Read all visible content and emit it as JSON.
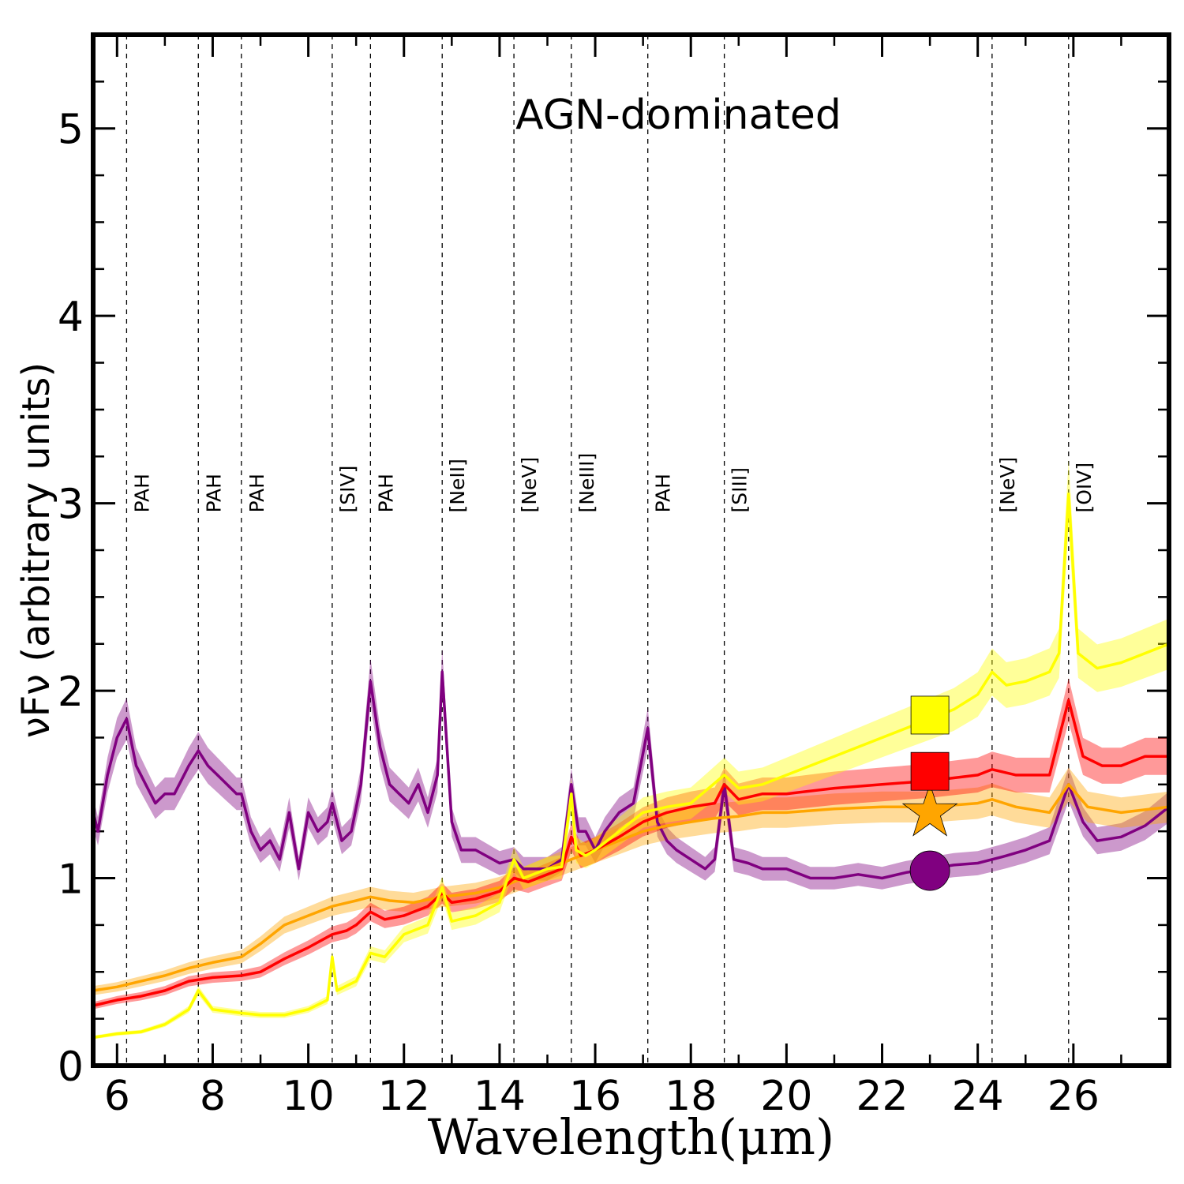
{
  "chart_data": {
    "type": "line",
    "title": "AGN-dominated",
    "xlabel": "Wavelength(μm)",
    "ylabel": "νFν (arbitrary units)",
    "xlim": [
      5.5,
      28.0
    ],
    "ylim": [
      0,
      5.5
    ],
    "x_ticks": [
      6,
      8,
      10,
      12,
      14,
      16,
      18,
      20,
      22,
      24,
      26
    ],
    "y_ticks": [
      0,
      1,
      2,
      3,
      4,
      5
    ],
    "grid": false,
    "spectral_lines": [
      {
        "x": 6.2,
        "label": "PAH"
      },
      {
        "x": 7.7,
        "label": "PAH"
      },
      {
        "x": 8.6,
        "label": "PAH"
      },
      {
        "x": 10.5,
        "label": "[SIV]"
      },
      {
        "x": 11.3,
        "label": "PAH"
      },
      {
        "x": 12.8,
        "label": "[NeII]"
      },
      {
        "x": 14.3,
        "label": "[NeV]"
      },
      {
        "x": 15.5,
        "label": "[NeIII]"
      },
      {
        "x": 17.1,
        "label": "PAH"
      },
      {
        "x": 18.7,
        "label": "[SIII]"
      },
      {
        "x": 24.3,
        "label": "[NeV]"
      },
      {
        "x": 25.9,
        "label": "[OIV]"
      }
    ],
    "series": [
      {
        "color": "#800080",
        "marker": "circle",
        "marker_point": [
          23.0,
          1.04
        ],
        "points": [
          [
            5.5,
            1.35
          ],
          [
            5.6,
            1.25
          ],
          [
            5.8,
            1.55
          ],
          [
            6.0,
            1.75
          ],
          [
            6.2,
            1.85
          ],
          [
            6.4,
            1.6
          ],
          [
            6.6,
            1.5
          ],
          [
            6.8,
            1.4
          ],
          [
            7.0,
            1.45
          ],
          [
            7.2,
            1.45
          ],
          [
            7.5,
            1.6
          ],
          [
            7.7,
            1.68
          ],
          [
            7.9,
            1.6
          ],
          [
            8.1,
            1.55
          ],
          [
            8.3,
            1.5
          ],
          [
            8.5,
            1.45
          ],
          [
            8.6,
            1.45
          ],
          [
            8.8,
            1.25
          ],
          [
            9.0,
            1.15
          ],
          [
            9.2,
            1.2
          ],
          [
            9.4,
            1.1
          ],
          [
            9.6,
            1.35
          ],
          [
            9.8,
            1.05
          ],
          [
            10.0,
            1.35
          ],
          [
            10.2,
            1.25
          ],
          [
            10.4,
            1.3
          ],
          [
            10.5,
            1.4
          ],
          [
            10.7,
            1.2
          ],
          [
            10.9,
            1.25
          ],
          [
            11.1,
            1.5
          ],
          [
            11.3,
            2.05
          ],
          [
            11.5,
            1.7
          ],
          [
            11.7,
            1.5
          ],
          [
            11.9,
            1.45
          ],
          [
            12.1,
            1.4
          ],
          [
            12.3,
            1.5
          ],
          [
            12.5,
            1.35
          ],
          [
            12.7,
            1.55
          ],
          [
            12.8,
            2.1
          ],
          [
            13.0,
            1.3
          ],
          [
            13.2,
            1.15
          ],
          [
            13.5,
            1.15
          ],
          [
            14.0,
            1.08
          ],
          [
            14.3,
            1.1
          ],
          [
            14.5,
            1.05
          ],
          [
            15.0,
            1.05
          ],
          [
            15.3,
            1.1
          ],
          [
            15.5,
            1.5
          ],
          [
            15.65,
            1.25
          ],
          [
            15.8,
            1.25
          ],
          [
            16.0,
            1.15
          ],
          [
            16.2,
            1.25
          ],
          [
            16.5,
            1.35
          ],
          [
            16.8,
            1.4
          ],
          [
            17.1,
            1.8
          ],
          [
            17.3,
            1.3
          ],
          [
            17.5,
            1.2
          ],
          [
            17.7,
            1.15
          ],
          [
            18.0,
            1.1
          ],
          [
            18.3,
            1.05
          ],
          [
            18.5,
            1.1
          ],
          [
            18.7,
            1.5
          ],
          [
            18.9,
            1.1
          ],
          [
            19.2,
            1.08
          ],
          [
            19.5,
            1.05
          ],
          [
            20.0,
            1.05
          ],
          [
            20.5,
            1.0
          ],
          [
            21.0,
            1.0
          ],
          [
            21.5,
            1.02
          ],
          [
            22.0,
            1.0
          ],
          [
            22.5,
            1.03
          ],
          [
            23.0,
            1.05
          ],
          [
            23.5,
            1.07
          ],
          [
            24.0,
            1.08
          ],
          [
            24.3,
            1.1
          ],
          [
            24.6,
            1.12
          ],
          [
            25.0,
            1.15
          ],
          [
            25.5,
            1.2
          ],
          [
            25.9,
            1.5
          ],
          [
            26.2,
            1.3
          ],
          [
            26.5,
            1.2
          ],
          [
            27.0,
            1.22
          ],
          [
            27.5,
            1.28
          ],
          [
            28.0,
            1.38
          ]
        ]
      },
      {
        "color": "#ffa500",
        "marker": "star",
        "marker_point": [
          23.0,
          1.35
        ],
        "points": [
          [
            5.5,
            0.4
          ],
          [
            6.0,
            0.42
          ],
          [
            6.5,
            0.45
          ],
          [
            7.0,
            0.48
          ],
          [
            7.5,
            0.52
          ],
          [
            8.0,
            0.55
          ],
          [
            8.6,
            0.58
          ],
          [
            9.0,
            0.65
          ],
          [
            9.5,
            0.75
          ],
          [
            10.0,
            0.8
          ],
          [
            10.5,
            0.85
          ],
          [
            11.0,
            0.88
          ],
          [
            11.3,
            0.9
          ],
          [
            11.7,
            0.88
          ],
          [
            12.2,
            0.87
          ],
          [
            12.8,
            0.9
          ],
          [
            13.5,
            0.92
          ],
          [
            14.0,
            0.95
          ],
          [
            14.5,
            1.0
          ],
          [
            15.0,
            1.05
          ],
          [
            15.5,
            1.1
          ],
          [
            16.0,
            1.15
          ],
          [
            16.5,
            1.2
          ],
          [
            17.0,
            1.25
          ],
          [
            17.5,
            1.28
          ],
          [
            18.0,
            1.3
          ],
          [
            18.5,
            1.32
          ],
          [
            19.0,
            1.33
          ],
          [
            19.5,
            1.35
          ],
          [
            20.0,
            1.35
          ],
          [
            21.0,
            1.37
          ],
          [
            22.0,
            1.38
          ],
          [
            23.0,
            1.38
          ],
          [
            24.0,
            1.4
          ],
          [
            24.3,
            1.42
          ],
          [
            24.8,
            1.38
          ],
          [
            25.5,
            1.35
          ],
          [
            25.9,
            1.5
          ],
          [
            26.3,
            1.38
          ],
          [
            27.0,
            1.35
          ],
          [
            28.0,
            1.38
          ]
        ]
      },
      {
        "color": "#ff0000",
        "marker": "square",
        "marker_point": [
          23.0,
          1.57
        ],
        "points": [
          [
            5.5,
            0.32
          ],
          [
            6.0,
            0.35
          ],
          [
            6.5,
            0.37
          ],
          [
            7.0,
            0.4
          ],
          [
            7.5,
            0.45
          ],
          [
            8.0,
            0.47
          ],
          [
            8.6,
            0.48
          ],
          [
            9.0,
            0.5
          ],
          [
            9.5,
            0.57
          ],
          [
            10.0,
            0.63
          ],
          [
            10.5,
            0.7
          ],
          [
            10.8,
            0.72
          ],
          [
            11.0,
            0.75
          ],
          [
            11.3,
            0.82
          ],
          [
            11.6,
            0.78
          ],
          [
            12.0,
            0.8
          ],
          [
            12.5,
            0.85
          ],
          [
            12.8,
            0.92
          ],
          [
            13.0,
            0.87
          ],
          [
            13.5,
            0.89
          ],
          [
            14.0,
            0.93
          ],
          [
            14.3,
            1.0
          ],
          [
            14.6,
            0.98
          ],
          [
            15.0,
            1.02
          ],
          [
            15.3,
            1.05
          ],
          [
            15.5,
            1.22
          ],
          [
            15.7,
            1.12
          ],
          [
            16.0,
            1.15
          ],
          [
            16.5,
            1.22
          ],
          [
            17.0,
            1.3
          ],
          [
            17.5,
            1.35
          ],
          [
            18.0,
            1.38
          ],
          [
            18.5,
            1.4
          ],
          [
            18.7,
            1.5
          ],
          [
            19.0,
            1.42
          ],
          [
            19.5,
            1.45
          ],
          [
            20.0,
            1.45
          ],
          [
            21.0,
            1.48
          ],
          [
            22.0,
            1.5
          ],
          [
            23.0,
            1.52
          ],
          [
            24.0,
            1.55
          ],
          [
            24.3,
            1.58
          ],
          [
            24.8,
            1.55
          ],
          [
            25.5,
            1.55
          ],
          [
            25.9,
            1.95
          ],
          [
            26.2,
            1.65
          ],
          [
            26.6,
            1.6
          ],
          [
            27.0,
            1.6
          ],
          [
            27.5,
            1.65
          ],
          [
            28.0,
            1.65
          ]
        ]
      },
      {
        "color": "#ffff00",
        "marker": "square",
        "marker_point": [
          23.0,
          1.87
        ],
        "points": [
          [
            5.5,
            0.15
          ],
          [
            6.0,
            0.17
          ],
          [
            6.5,
            0.18
          ],
          [
            7.0,
            0.22
          ],
          [
            7.5,
            0.3
          ],
          [
            7.7,
            0.4
          ],
          [
            8.0,
            0.3
          ],
          [
            8.6,
            0.28
          ],
          [
            9.0,
            0.27
          ],
          [
            9.5,
            0.27
          ],
          [
            10.0,
            0.3
          ],
          [
            10.4,
            0.35
          ],
          [
            10.5,
            0.58
          ],
          [
            10.6,
            0.4
          ],
          [
            11.0,
            0.45
          ],
          [
            11.3,
            0.6
          ],
          [
            11.6,
            0.58
          ],
          [
            12.0,
            0.7
          ],
          [
            12.5,
            0.75
          ],
          [
            12.8,
            0.95
          ],
          [
            13.0,
            0.77
          ],
          [
            13.5,
            0.8
          ],
          [
            14.0,
            0.87
          ],
          [
            14.3,
            1.1
          ],
          [
            14.5,
            1.0
          ],
          [
            15.0,
            1.05
          ],
          [
            15.3,
            1.06
          ],
          [
            15.5,
            1.45
          ],
          [
            15.6,
            1.15
          ],
          [
            15.8,
            1.12
          ],
          [
            16.0,
            1.15
          ],
          [
            16.5,
            1.25
          ],
          [
            17.0,
            1.35
          ],
          [
            17.5,
            1.38
          ],
          [
            18.0,
            1.4
          ],
          [
            18.7,
            1.55
          ],
          [
            19.0,
            1.48
          ],
          [
            19.5,
            1.5
          ],
          [
            20.0,
            1.55
          ],
          [
            21.0,
            1.65
          ],
          [
            22.0,
            1.75
          ],
          [
            23.0,
            1.85
          ],
          [
            23.5,
            1.9
          ],
          [
            24.0,
            1.98
          ],
          [
            24.3,
            2.1
          ],
          [
            24.6,
            2.03
          ],
          [
            25.0,
            2.05
          ],
          [
            25.5,
            2.1
          ],
          [
            25.7,
            2.2
          ],
          [
            25.9,
            3.05
          ],
          [
            26.1,
            2.2
          ],
          [
            26.5,
            2.12
          ],
          [
            27.0,
            2.15
          ],
          [
            27.5,
            2.2
          ],
          [
            28.0,
            2.25
          ]
        ]
      }
    ]
  }
}
